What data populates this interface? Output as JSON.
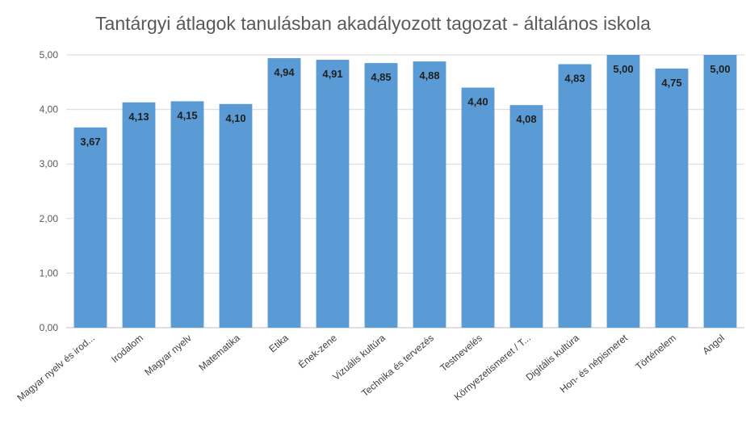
{
  "chart_data": {
    "type": "bar",
    "title": "Tantárgyi átlagok tanulásban akadályozott tagozat - általános iskola",
    "xlabel": "",
    "ylabel": "",
    "ylim": [
      0,
      5
    ],
    "yticks": [
      "0,00",
      "1,00",
      "2,00",
      "3,00",
      "4,00",
      "5,00"
    ],
    "grid": true,
    "bar_color": "#5b9bd5",
    "categories": [
      "Magyar nyelv és irod...",
      "Irodalom",
      "Magyar nyelv",
      "Matematika",
      "Etika",
      "Ének-zene",
      "Vizuális kultúra",
      "Technika és tervezés",
      "Testnevelés",
      "Környezetismeret / T...",
      "Digitális kultúra",
      "Hon- és népismeret",
      "Történelem",
      "Angol"
    ],
    "values": [
      3.67,
      4.13,
      4.15,
      4.1,
      4.94,
      4.91,
      4.85,
      4.88,
      4.4,
      4.08,
      4.83,
      5.0,
      4.75,
      5.0
    ],
    "value_labels": [
      "3,67",
      "4,13",
      "4,15",
      "4,10",
      "4,94",
      "4,91",
      "4,85",
      "4,88",
      "4,40",
      "4,08",
      "4,83",
      "5,00",
      "4,75",
      "5,00"
    ]
  }
}
